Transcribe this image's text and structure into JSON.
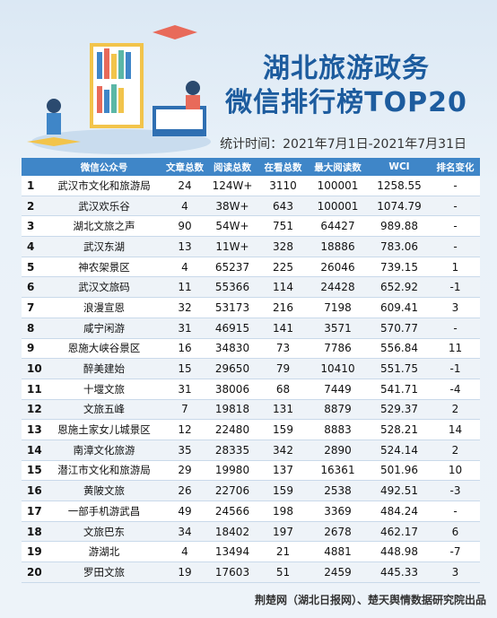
{
  "title_line1": "湖北旅游政务",
  "title_line2": "微信排行榜TOP20",
  "period": "统计时间：2021年7月1日-2021年7月31日",
  "headers": [
    "",
    "微信公众号",
    "文章总数",
    "阅读总数",
    "在看总数",
    "最大阅读数",
    "WCI",
    "排名变化"
  ],
  "rows": [
    [
      "1",
      "武汉市文化和旅游局",
      "24",
      "124W+",
      "3110",
      "100001",
      "1258.55",
      "-"
    ],
    [
      "2",
      "武汉欢乐谷",
      "4",
      "38W+",
      "643",
      "100001",
      "1074.79",
      "-"
    ],
    [
      "3",
      "湖北文旅之声",
      "90",
      "54W+",
      "751",
      "64427",
      "989.88",
      "-"
    ],
    [
      "4",
      "武汉东湖",
      "13",
      "11W+",
      "328",
      "18886",
      "783.06",
      "-"
    ],
    [
      "5",
      "神农架景区",
      "4",
      "65237",
      "225",
      "26046",
      "739.15",
      "1"
    ],
    [
      "6",
      "武汉文旅码",
      "11",
      "55366",
      "114",
      "24428",
      "652.92",
      "-1"
    ],
    [
      "7",
      "浪漫宣恩",
      "32",
      "53173",
      "216",
      "7198",
      "609.41",
      "3"
    ],
    [
      "8",
      "咸宁闲游",
      "31",
      "46915",
      "141",
      "3571",
      "570.77",
      "-"
    ],
    [
      "9",
      "恩施大峡谷景区",
      "16",
      "34830",
      "73",
      "7786",
      "556.84",
      "11"
    ],
    [
      "10",
      "醉美建始",
      "15",
      "29650",
      "79",
      "10410",
      "551.75",
      "-1"
    ],
    [
      "11",
      "十堰文旅",
      "31",
      "38006",
      "68",
      "7449",
      "541.71",
      "-4"
    ],
    [
      "12",
      "文旅五峰",
      "7",
      "19818",
      "131",
      "8879",
      "529.37",
      "2"
    ],
    [
      "13",
      "恩施土家女儿城景区",
      "12",
      "22480",
      "159",
      "8883",
      "528.21",
      "14"
    ],
    [
      "14",
      "南漳文化旅游",
      "35",
      "28335",
      "342",
      "2890",
      "524.14",
      "2"
    ],
    [
      "15",
      "潜江市文化和旅游局",
      "29",
      "19980",
      "137",
      "16361",
      "501.96",
      "10"
    ],
    [
      "16",
      "黄陂文旅",
      "26",
      "22706",
      "159",
      "2538",
      "492.51",
      "-3"
    ],
    [
      "17",
      "一部手机游武昌",
      "49",
      "24566",
      "198",
      "3369",
      "484.24",
      "-"
    ],
    [
      "18",
      "文旅巴东",
      "34",
      "18402",
      "197",
      "2678",
      "462.17",
      "6"
    ],
    [
      "19",
      "游湖北",
      "4",
      "13494",
      "21",
      "4881",
      "448.98",
      "-7"
    ],
    [
      "20",
      "罗田文旅",
      "19",
      "17603",
      "51",
      "2459",
      "445.33",
      "3"
    ]
  ],
  "footer": "荆楚网（湖北日报网）、楚天舆情数据研究院出品",
  "colors": {
    "header_bg": "#3f86c8",
    "title": "#1d5c9e"
  }
}
